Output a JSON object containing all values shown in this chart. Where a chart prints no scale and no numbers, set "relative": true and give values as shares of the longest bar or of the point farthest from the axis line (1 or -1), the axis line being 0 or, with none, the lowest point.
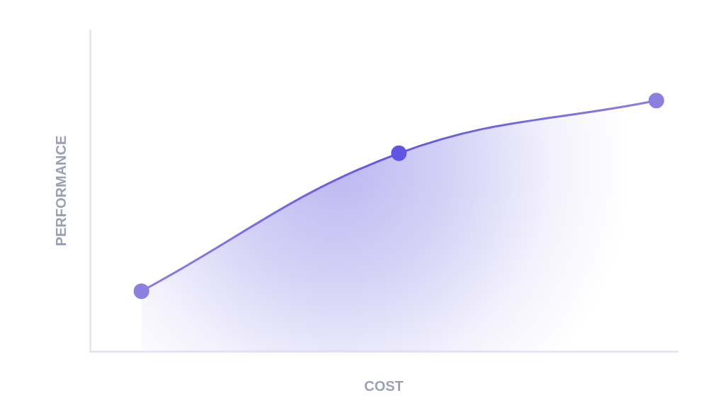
{
  "chart_data": {
    "type": "area",
    "xlabel": "COST",
    "ylabel": "PERFORMANCE",
    "categories": [
      null,
      null,
      null
    ],
    "values": [
      0.24,
      0.79,
      1
    ],
    "color": "#6a5fe0",
    "colors": [
      "#8b80e0",
      "#5f55e2",
      "#8b80e0"
    ],
    "relative": true,
    "marker": "circle"
  }
}
